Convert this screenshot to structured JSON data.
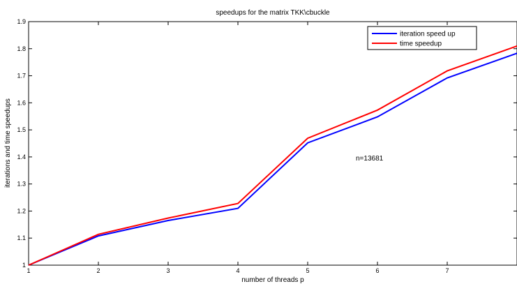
{
  "chart_data": {
    "type": "line",
    "title": "speedups for the matrix TKK\\cbuckle",
    "xlabel": "number of threads p",
    "ylabel": "iterations and time speedups",
    "xlim": [
      1,
      8
    ],
    "ylim": [
      1,
      1.9
    ],
    "xticks": [
      "1",
      "2",
      "3",
      "4",
      "5",
      "6",
      "7"
    ],
    "yticks": [
      "1",
      "1.1",
      "1.2",
      "1.3",
      "1.4",
      "1.5",
      "1.6",
      "1.7",
      "1.8",
      "1.9"
    ],
    "grid": false,
    "legend_position": "top-right",
    "x": [
      1,
      2,
      3,
      4,
      5,
      6,
      7,
      8
    ],
    "series": [
      {
        "name": "iteration speed up",
        "color": "#0000ff",
        "values": [
          1.0,
          1.108,
          1.165,
          1.21,
          1.452,
          1.548,
          1.692,
          1.783
        ]
      },
      {
        "name": "time speedup",
        "color": "#ff0000",
        "values": [
          1.0,
          1.114,
          1.174,
          1.228,
          1.469,
          1.573,
          1.718,
          1.81
        ]
      }
    ],
    "annotation": "n=13681"
  }
}
